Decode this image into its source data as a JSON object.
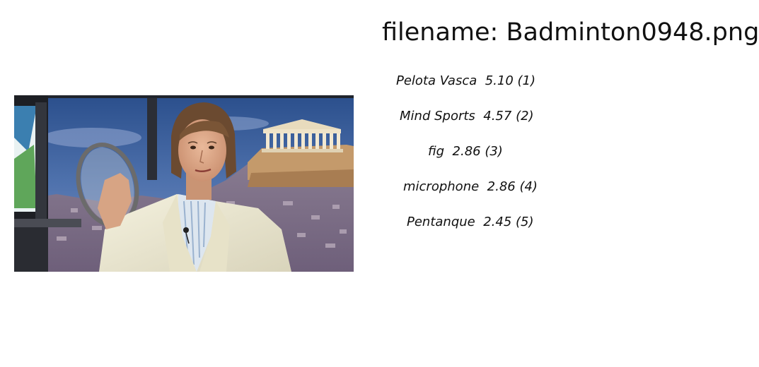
{
  "filename_label": "filename: Badminton0948.png",
  "image": {
    "subject": "news-studio-presenter-holding-badminton-racket-photo"
  },
  "predictions": [
    {
      "label": "Pelota Vasca",
      "score": "5.10",
      "rank": "(1)"
    },
    {
      "label": "Mind Sports",
      "score": "4.57",
      "rank": "(2)"
    },
    {
      "label": "fig",
      "score": "2.86",
      "rank": "(3)"
    },
    {
      "label": "microphone",
      "score": "2.86",
      "rank": "(4)"
    },
    {
      "label": "Pentanque",
      "score": "2.45",
      "rank": "(5)"
    }
  ]
}
